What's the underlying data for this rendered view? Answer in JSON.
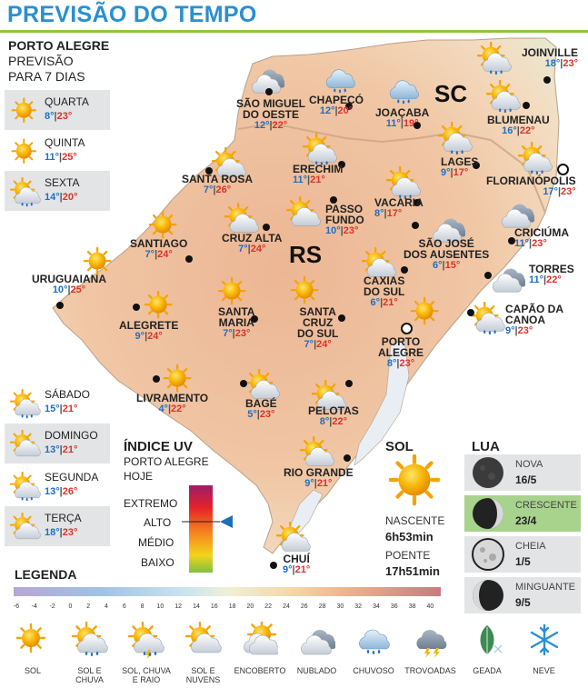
{
  "header": {
    "title": "PREVISÃO DO TEMPO"
  },
  "forecast_box": {
    "city": "PORTO ALEGRE",
    "subtitle1": "PREVISÃO",
    "subtitle2": "PARA 7 DIAS"
  },
  "days": [
    {
      "name": "QUARTA",
      "min": "8°",
      "max": "23°",
      "icon": "sun-icon"
    },
    {
      "name": "QUINTA",
      "min": "11°",
      "max": "25°",
      "icon": "sun-icon"
    },
    {
      "name": "SEXTA",
      "min": "14°",
      "max": "20°",
      "icon": "sun-rain-icon"
    },
    {
      "name": "SÁBADO",
      "min": "15°",
      "max": "21°",
      "icon": "sun-rain-icon"
    },
    {
      "name": "DOMINGO",
      "min": "13°",
      "max": "21°",
      "icon": "sun-cloud-icon"
    },
    {
      "name": "SEGUNDA",
      "min": "13°",
      "max": "26°",
      "icon": "sun-rain-icon"
    },
    {
      "name": "TERÇA",
      "min": "18°",
      "max": "23°",
      "icon": "sun-cloud-icon"
    }
  ],
  "states": {
    "sc": "SC",
    "rs": "RS"
  },
  "cities": [
    {
      "name": [
        "SÃO MIGUEL",
        "DO OESTE"
      ],
      "min": "12°",
      "max": "22°"
    },
    {
      "name": [
        "CHAPECÓ"
      ],
      "min": "12°",
      "max": "20°"
    },
    {
      "name": [
        "JOAÇABA"
      ],
      "min": "11°",
      "max": "19°"
    },
    {
      "name": [
        "JOINVILLE"
      ],
      "min": "18°",
      "max": "23°"
    },
    {
      "name": [
        "BLUMENAU"
      ],
      "min": "16°",
      "max": "22°"
    },
    {
      "name": [
        "LAGES"
      ],
      "min": "9°",
      "max": "17°"
    },
    {
      "name": [
        "FLORIANÓPOLIS"
      ],
      "min": "17°",
      "max": "23°"
    },
    {
      "name": [
        "ERECHIM"
      ],
      "min": "11°",
      "max": "21°"
    },
    {
      "name": [
        "SANTA ROSA"
      ],
      "min": "7°",
      "max": "26°"
    },
    {
      "name": [
        "PASSO",
        "FUNDO"
      ],
      "min": "10°",
      "max": "23°"
    },
    {
      "name": [
        "VACARIA"
      ],
      "min": "8°",
      "max": "17°"
    },
    {
      "name": [
        "CRICIÚMA"
      ],
      "min": "11°",
      "max": "23°"
    },
    {
      "name": [
        "CRUZ ALTA"
      ],
      "min": "7°",
      "max": "24°"
    },
    {
      "name": [
        "SANTIAGO"
      ],
      "min": "7°",
      "max": "24°"
    },
    {
      "name": [
        "SÃO JOSÉ",
        "DOS AUSENTES"
      ],
      "min": "6°",
      "max": "15°"
    },
    {
      "name": [
        "TORRES"
      ],
      "min": "11°",
      "max": "22°"
    },
    {
      "name": [
        "URUGUAIANA"
      ],
      "min": "10°",
      "max": "25°"
    },
    {
      "name": [
        "CAXIAS",
        "DO SUL"
      ],
      "min": "6°",
      "max": "21°"
    },
    {
      "name": [
        "CAPÃO DA",
        "CANOA"
      ],
      "min": "9°",
      "max": "23°"
    },
    {
      "name": [
        "ALEGRETE"
      ],
      "min": "9°",
      "max": "24°"
    },
    {
      "name": [
        "SANTA",
        "MARIA"
      ],
      "min": "7°",
      "max": "23°"
    },
    {
      "name": [
        "SANTA",
        "CRUZ",
        "DO SUL"
      ],
      "min": "7°",
      "max": "24°"
    },
    {
      "name": [
        "PORTO",
        "ALEGRE"
      ],
      "min": "8°",
      "max": "23°"
    },
    {
      "name": [
        "LIVRAMENTO"
      ],
      "min": "4°",
      "max": "22°"
    },
    {
      "name": [
        "BAGÉ"
      ],
      "min": "5°",
      "max": "23°"
    },
    {
      "name": [
        "PELOTAS"
      ],
      "min": "8°",
      "max": "22°"
    },
    {
      "name": [
        "RIO GRANDE"
      ],
      "min": "9°",
      "max": "21°"
    },
    {
      "name": [
        "CHUÍ"
      ],
      "min": "9°",
      "max": "21°"
    }
  ],
  "uv": {
    "title": "ÍNDICE UV",
    "sub1": "PORTO ALEGRE",
    "sub2": "HOJE",
    "levels": [
      "EXTREMO",
      "ALTO",
      "MÉDIO",
      "BAIXO"
    ],
    "current_level": "ALTO"
  },
  "sun": {
    "title": "SOL",
    "sunrise_label": "NASCENTE",
    "sunrise": "6h53min",
    "sunset_label": "POENTE",
    "sunset": "17h51min"
  },
  "moon": {
    "title": "LUA",
    "phases": [
      {
        "name": "NOVA",
        "date": "16/5",
        "highlight": false
      },
      {
        "name": "CRESCENTE",
        "date": "23/4",
        "highlight": true
      },
      {
        "name": "CHEIA",
        "date": "1/5",
        "highlight": false
      },
      {
        "name": "MINGUANTE",
        "date": "9/5",
        "highlight": false
      }
    ]
  },
  "legend": {
    "title": "LEGENDA",
    "scale": [
      "-6",
      "-4",
      "-2",
      "0",
      "2",
      "4",
      "6",
      "8",
      "10",
      "12",
      "14",
      "16",
      "18",
      "20",
      "22",
      "24",
      "26",
      "28",
      "30",
      "32",
      "34",
      "36",
      "38",
      "40"
    ],
    "items": [
      {
        "label": [
          "SOL"
        ],
        "icon": "sun-icon"
      },
      {
        "label": [
          "SOL E",
          "CHUVA"
        ],
        "icon": "sun-rain-icon"
      },
      {
        "label": [
          "SOL, CHUVA",
          "E RAIO"
        ],
        "icon": "sun-storm-icon"
      },
      {
        "label": [
          "SOL E",
          "NUVENS"
        ],
        "icon": "sun-cloud-icon"
      },
      {
        "label": [
          "ENCOBERTO"
        ],
        "icon": "overcast-icon"
      },
      {
        "label": [
          "NUBLADO"
        ],
        "icon": "cloudy-icon"
      },
      {
        "label": [
          "CHUVOSO"
        ],
        "icon": "rain-icon"
      },
      {
        "label": [
          "TROVOADAS"
        ],
        "icon": "thunderstorm-icon"
      },
      {
        "label": [
          "GEADA"
        ],
        "icon": "frost-icon"
      },
      {
        "label": [
          "NEVE"
        ],
        "icon": "snow-icon"
      }
    ]
  },
  "colors": {
    "title": "#2a8fd0",
    "accent": "#8cc640",
    "min": "#1d6fc4",
    "max": "#d8332a",
    "uv_arrow": "#1a6fb5"
  }
}
